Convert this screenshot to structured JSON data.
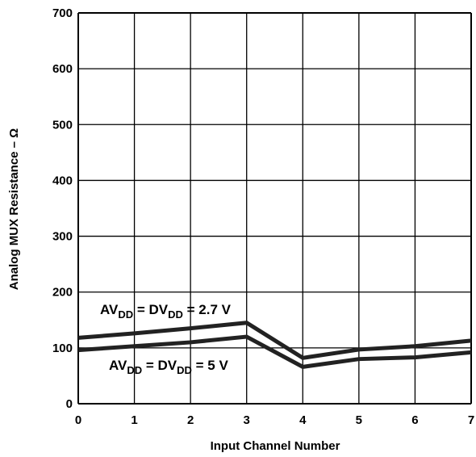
{
  "chart_data": {
    "type": "line",
    "title": "",
    "xlabel": "Input Channel Number",
    "ylabel": "Analog MUX Resistance – Ω",
    "x": [
      0,
      1,
      2,
      3,
      4,
      5,
      6,
      7
    ],
    "xlim": [
      0,
      7
    ],
    "ylim": [
      0,
      700
    ],
    "xticks": [
      "0",
      "1",
      "2",
      "3",
      "4",
      "5",
      "6",
      "7"
    ],
    "yticks": [
      "0",
      "100",
      "200",
      "300",
      "400",
      "500",
      "600",
      "700"
    ],
    "grid": true,
    "series": [
      {
        "values": [
          118,
          126,
          135,
          145,
          82,
          97,
          103,
          113
        ]
      },
      {
        "values": [
          96,
          103,
          110,
          120,
          66,
          80,
          83,
          92
        ]
      }
    ],
    "annotations": [
      {
        "main1": "AV",
        "sub1": "DD",
        "main2": " = DV",
        "sub2": "DD",
        "main3": " = 2.7 V"
      },
      {
        "main1": "AV",
        "sub1": "DD",
        "main2": " = DV",
        "sub2": "DD",
        "main3": " = 5 V"
      }
    ],
    "colors": {
      "line": "#222222",
      "grid": "#000000"
    }
  }
}
